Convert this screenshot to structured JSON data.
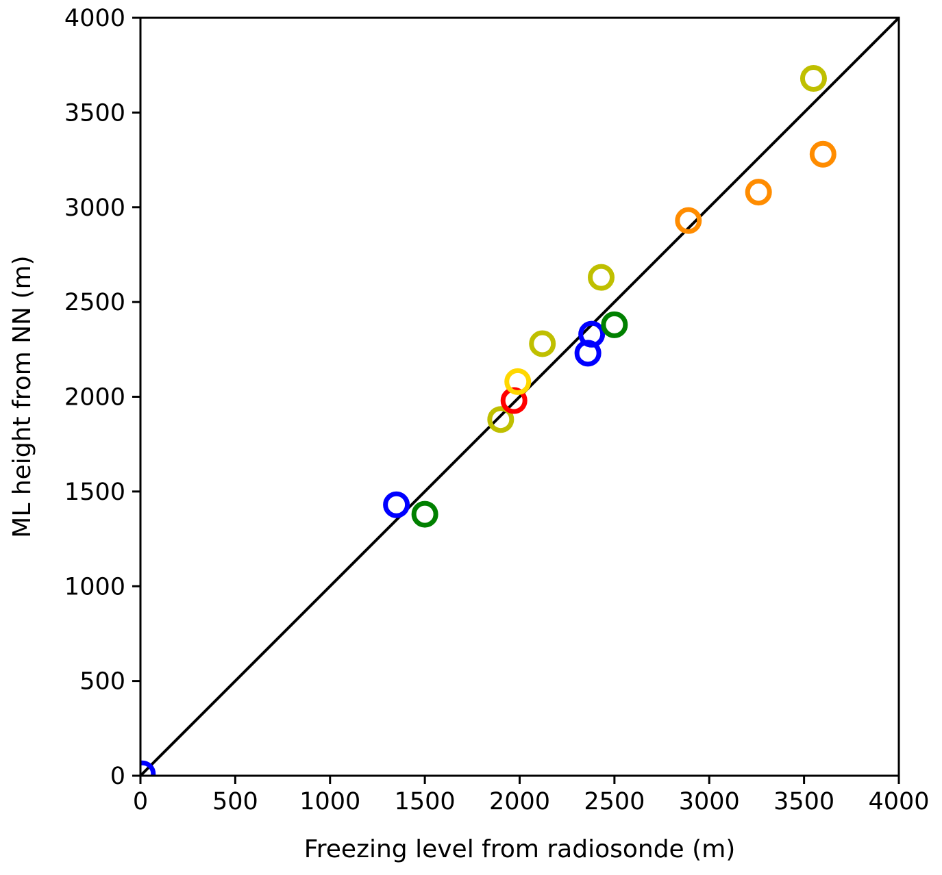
{
  "chart_data": {
    "type": "scatter",
    "title": "",
    "xlabel": "Freezing level from radiosonde (m)",
    "ylabel": "ML height from NN (m)",
    "xlim": [
      0,
      4000
    ],
    "ylim": [
      0,
      4000
    ],
    "xticks": [
      "0",
      "500",
      "1000",
      "1500",
      "2000",
      "2500",
      "3000",
      "3500",
      "4000"
    ],
    "yticks": [
      "0",
      "500",
      "1000",
      "1500",
      "2000",
      "2500",
      "3000",
      "3500",
      "4000"
    ],
    "grid": false,
    "reference_line": {
      "type": "identity",
      "from": [
        0,
        0
      ],
      "to": [
        4000,
        4000
      ],
      "color": "#000000"
    },
    "marker": "hollow-circle",
    "points": [
      {
        "x": 10,
        "y": 10,
        "color": "#0000ff"
      },
      {
        "x": 1350,
        "y": 1430,
        "color": "#0000ff"
      },
      {
        "x": 1500,
        "y": 1380,
        "color": "#008000"
      },
      {
        "x": 1900,
        "y": 1880,
        "color": "#bfbf00"
      },
      {
        "x": 1970,
        "y": 1980,
        "color": "#ff0000"
      },
      {
        "x": 1990,
        "y": 2080,
        "color": "#ffd700"
      },
      {
        "x": 2120,
        "y": 2280,
        "color": "#bfbf00"
      },
      {
        "x": 2360,
        "y": 2230,
        "color": "#0000ff"
      },
      {
        "x": 2380,
        "y": 2330,
        "color": "#0000ff"
      },
      {
        "x": 2500,
        "y": 2380,
        "color": "#008000"
      },
      {
        "x": 2430,
        "y": 2630,
        "color": "#bfbf00"
      },
      {
        "x": 2890,
        "y": 2930,
        "color": "#ff8c00"
      },
      {
        "x": 3260,
        "y": 3080,
        "color": "#ff8c00"
      },
      {
        "x": 3550,
        "y": 3680,
        "color": "#bfbf00"
      },
      {
        "x": 3600,
        "y": 3280,
        "color": "#ff8c00"
      }
    ]
  }
}
